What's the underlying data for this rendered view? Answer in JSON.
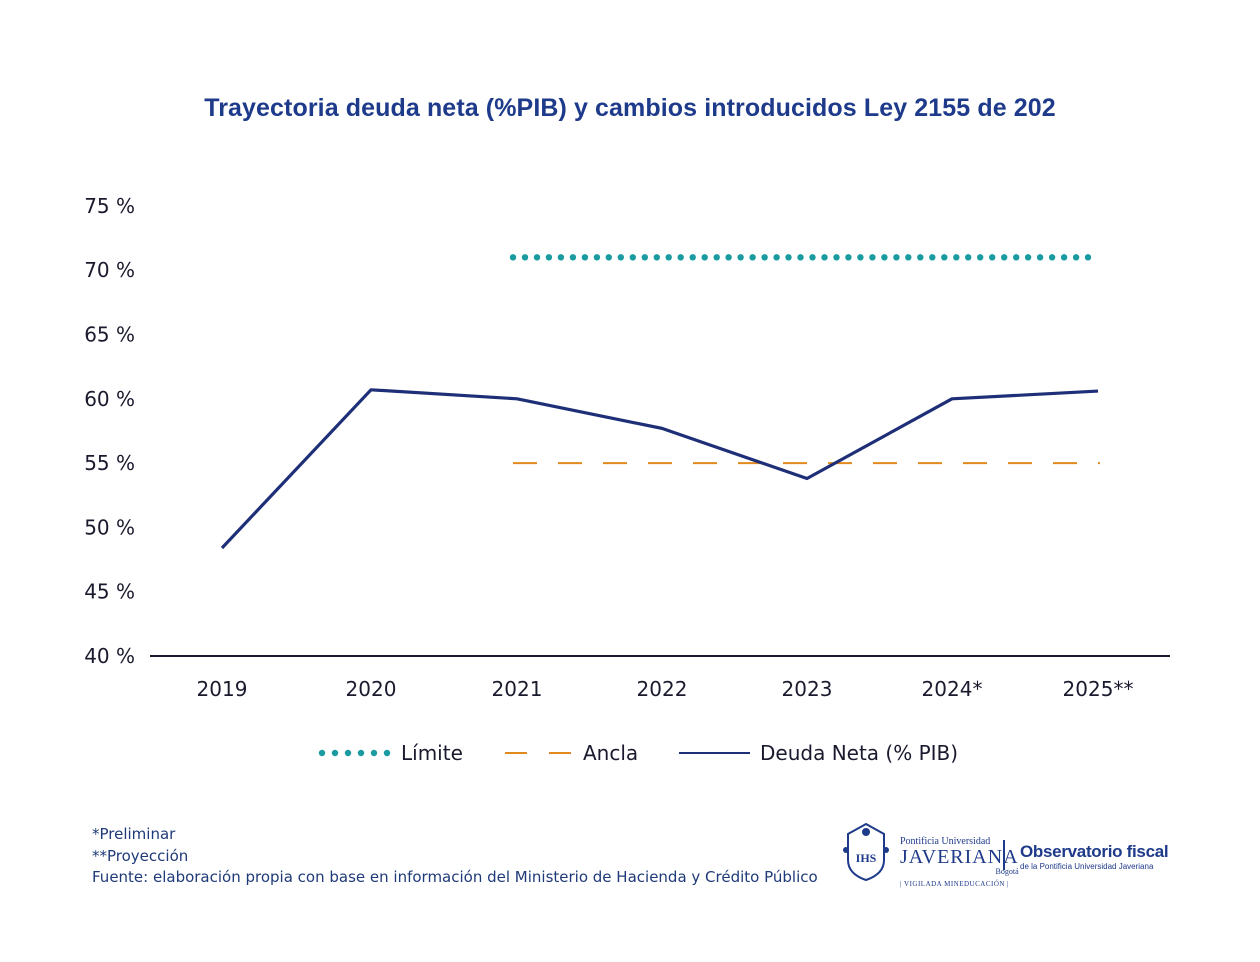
{
  "title": "Trayectoria deuda neta (%PIB) y cambios introducidos Ley 2155 de 202",
  "chart_data": {
    "type": "line",
    "title": "Trayectoria deuda neta (%PIB) y cambios introducidos Ley 2155 de 202",
    "categories": [
      "2019",
      "2020",
      "2021",
      "2022",
      "2023",
      "2024*",
      "2025**"
    ],
    "y_ticks": [
      "40 %",
      "45 %",
      "50 %",
      "55 %",
      "60 %",
      "65 %",
      "70 %",
      "75 %"
    ],
    "ylim": [
      40,
      75
    ],
    "grid": false,
    "legend_position": "bottom",
    "series": [
      {
        "name": "Límite",
        "style": "dotted",
        "color": "#1a9ba1",
        "values": [
          null,
          null,
          71,
          71,
          71,
          71,
          71
        ]
      },
      {
        "name": "Ancla",
        "style": "dashed",
        "color": "#e08a1e",
        "values": [
          null,
          null,
          55,
          55,
          55,
          55,
          55
        ]
      },
      {
        "name": "Deuda Neta (% PIB)",
        "style": "solid",
        "color": "#1e2f78",
        "values": [
          48.4,
          60.7,
          60.0,
          57.7,
          53.8,
          60.0,
          60.6
        ]
      }
    ]
  },
  "notes": {
    "preliminar": "*Preliminar",
    "proyeccion": "**Proyección",
    "fuente": "Fuente: elaboración propia con base en información del Ministerio de Hacienda y Crédito Público"
  },
  "logos": {
    "javeriana_small": "Pontificia Universidad",
    "javeriana_big": "JAVERIANA",
    "javeriana_city": "Bogotá",
    "vigilada": "| VIGILADA MINEDUCACIÓN |",
    "obs_big": "Observatorio fiscal",
    "obs_small": "de la Pontificia Universidad Javeriana"
  }
}
